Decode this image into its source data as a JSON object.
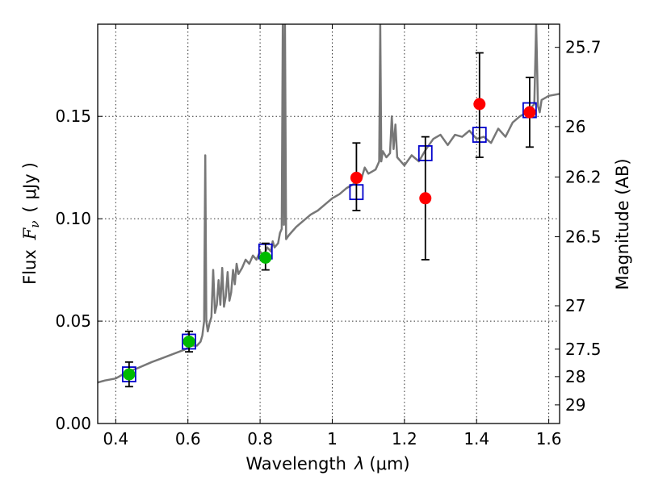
{
  "chart_data": {
    "type": "scatter",
    "title": "",
    "xlabel_prefix": "Wavelength",
    "xlabel_var": "λ",
    "xlabel_unit": "(μm)",
    "ylabel_prefix": "Flux",
    "ylabel_var": "F",
    "ylabel_sub": "ν",
    "ylabel_unit_open": "(",
    "ylabel_unit": "μJy",
    "ylabel_unit_close": ")",
    "y2label": "Magnitude (AB)",
    "xlim": [
      0.35,
      1.63
    ],
    "ylim": [
      0.0,
      0.195
    ],
    "grid": true,
    "x_ticks": [
      {
        "value": 0.4,
        "label": "0.4"
      },
      {
        "value": 0.6,
        "label": "0.6"
      },
      {
        "value": 0.8,
        "label": "0.8"
      },
      {
        "value": 1.0,
        "label": "1"
      },
      {
        "value": 1.2,
        "label": "1.2"
      },
      {
        "value": 1.4,
        "label": "1.4"
      },
      {
        "value": 1.6,
        "label": "1.6"
      }
    ],
    "y_ticks": [
      {
        "value": 0.0,
        "label": "0.00"
      },
      {
        "value": 0.05,
        "label": "0.05"
      },
      {
        "value": 0.1,
        "label": "0.10"
      },
      {
        "value": 0.15,
        "label": "0.15"
      }
    ],
    "y2_ticks": [
      {
        "flux": 0.1837,
        "label": "25.7"
      },
      {
        "flux": 0.145,
        "label": "26"
      },
      {
        "flux": 0.1204,
        "label": "26.2"
      },
      {
        "flux": 0.0912,
        "label": "26.5"
      },
      {
        "flux": 0.0575,
        "label": "27"
      },
      {
        "flux": 0.0363,
        "label": "27.5"
      },
      {
        "flux": 0.0229,
        "label": "28"
      },
      {
        "flux": 0.0091,
        "label": "29"
      }
    ],
    "spectrum": {
      "color": "#777777",
      "x": [
        0.35,
        0.37,
        0.4,
        0.43,
        0.46,
        0.5,
        0.53,
        0.56,
        0.59,
        0.61,
        0.625,
        0.635,
        0.64,
        0.645,
        0.648,
        0.651,
        0.655,
        0.66,
        0.665,
        0.67,
        0.675,
        0.68,
        0.685,
        0.69,
        0.695,
        0.7,
        0.705,
        0.71,
        0.715,
        0.72,
        0.725,
        0.73,
        0.735,
        0.74,
        0.75,
        0.76,
        0.77,
        0.78,
        0.79,
        0.8,
        0.81,
        0.82,
        0.83,
        0.835,
        0.84,
        0.85,
        0.855,
        0.86,
        0.863,
        0.866,
        0.869,
        0.872,
        0.88,
        0.9,
        0.92,
        0.94,
        0.96,
        0.98,
        1.0,
        1.02,
        1.04,
        1.06,
        1.08,
        1.09,
        1.1,
        1.11,
        1.12,
        1.13,
        1.133,
        1.136,
        1.14,
        1.15,
        1.16,
        1.165,
        1.17,
        1.175,
        1.18,
        1.2,
        1.22,
        1.24,
        1.26,
        1.28,
        1.3,
        1.32,
        1.34,
        1.36,
        1.38,
        1.4,
        1.42,
        1.44,
        1.46,
        1.48,
        1.5,
        1.52,
        1.54,
        1.56,
        1.565,
        1.57,
        1.575,
        1.58,
        1.6,
        1.63
      ],
      "y": [
        0.02,
        0.021,
        0.022,
        0.025,
        0.027,
        0.03,
        0.032,
        0.034,
        0.036,
        0.038,
        0.038,
        0.04,
        0.043,
        0.05,
        0.131,
        0.05,
        0.045,
        0.049,
        0.052,
        0.075,
        0.054,
        0.058,
        0.07,
        0.058,
        0.076,
        0.057,
        0.062,
        0.074,
        0.06,
        0.064,
        0.075,
        0.068,
        0.078,
        0.073,
        0.076,
        0.08,
        0.078,
        0.082,
        0.08,
        0.084,
        0.082,
        0.086,
        0.084,
        0.089,
        0.086,
        0.088,
        0.093,
        0.095,
        0.195,
        0.097,
        0.195,
        0.09,
        0.092,
        0.096,
        0.099,
        0.102,
        0.104,
        0.107,
        0.11,
        0.112,
        0.115,
        0.117,
        0.119,
        0.125,
        0.122,
        0.123,
        0.124,
        0.128,
        0.195,
        0.128,
        0.133,
        0.13,
        0.132,
        0.15,
        0.134,
        0.146,
        0.13,
        0.126,
        0.131,
        0.128,
        0.134,
        0.139,
        0.141,
        0.136,
        0.141,
        0.14,
        0.143,
        0.139,
        0.14,
        0.137,
        0.144,
        0.14,
        0.147,
        0.15,
        0.152,
        0.156,
        0.195,
        0.155,
        0.152,
        0.158,
        0.16,
        0.161
      ]
    },
    "series": [
      {
        "marker": "open-square",
        "color": "#0000cc",
        "x": [
          0.437,
          0.603,
          0.815,
          1.067,
          1.258,
          1.408,
          1.547
        ],
        "y": [
          0.024,
          0.04,
          0.084,
          0.113,
          0.132,
          0.141,
          0.153
        ]
      },
      {
        "marker": "filled-circle",
        "color": "#00bb00",
        "x": [
          0.437,
          0.603,
          0.815
        ],
        "y": [
          0.024,
          0.04,
          0.081
        ],
        "err_low": [
          0.018,
          0.035,
          0.075
        ],
        "err_high": [
          0.03,
          0.045,
          0.088
        ]
      },
      {
        "marker": "filled-circle",
        "color": "#ff0000",
        "x": [
          1.067,
          1.258,
          1.408,
          1.547
        ],
        "y": [
          0.12,
          0.11,
          0.156,
          0.152
        ],
        "err_low": [
          0.104,
          0.08,
          0.13,
          0.135
        ],
        "err_high": [
          0.137,
          0.14,
          0.181,
          0.169
        ]
      }
    ]
  }
}
